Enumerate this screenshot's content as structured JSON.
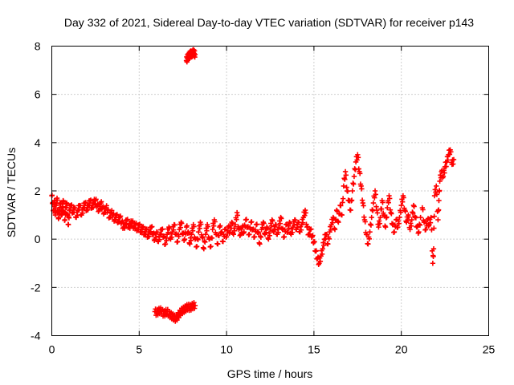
{
  "chart_data": {
    "type": "scatter",
    "title": "Day 332 of 2021, Sidereal Day-to-day VTEC variation (SDTVAR) for receiver p143",
    "xlabel": "GPS time / hours",
    "ylabel": "SDTVAR / TECUs",
    "xlim": [
      0,
      25
    ],
    "ylim": [
      -4,
      8
    ],
    "x_ticks": [
      0,
      5,
      10,
      15,
      20,
      25
    ],
    "y_ticks": [
      -4,
      -2,
      0,
      2,
      4,
      6,
      8
    ],
    "grid": true,
    "marker": "plus",
    "series": [
      {
        "name": "SDTVAR",
        "color": "#ff0000",
        "points": [
          [
            0.0,
            1.8
          ],
          [
            0.05,
            1.5
          ],
          [
            0.1,
            1.2
          ],
          [
            0.15,
            1.6
          ],
          [
            0.2,
            1.0
          ],
          [
            0.25,
            1.4
          ],
          [
            0.3,
            1.7
          ],
          [
            0.35,
            1.1
          ],
          [
            0.4,
            0.9
          ],
          [
            0.45,
            1.3
          ],
          [
            0.5,
            1.5
          ],
          [
            0.55,
            1.0
          ],
          [
            0.6,
            1.2
          ],
          [
            0.65,
            1.6
          ],
          [
            0.7,
            1.1
          ],
          [
            0.75,
            0.8
          ],
          [
            0.8,
            1.3
          ],
          [
            0.85,
            1.5
          ],
          [
            0.9,
            1.0
          ],
          [
            0.95,
            0.6
          ],
          [
            1.0,
            1.2
          ],
          [
            1.1,
            1.4
          ],
          [
            1.2,
            1.1
          ],
          [
            1.3,
            1.3
          ],
          [
            1.4,
            0.9
          ],
          [
            1.5,
            1.2
          ],
          [
            1.6,
            1.4
          ],
          [
            1.7,
            1.0
          ],
          [
            1.8,
            1.3
          ],
          [
            1.9,
            1.5
          ],
          [
            2.0,
            1.2
          ],
          [
            2.1,
            1.4
          ],
          [
            2.2,
            1.6
          ],
          [
            2.3,
            1.3
          ],
          [
            2.4,
            1.5
          ],
          [
            2.5,
            1.6
          ],
          [
            2.6,
            1.4
          ],
          [
            2.7,
            1.2
          ],
          [
            2.8,
            1.5
          ],
          [
            2.9,
            1.3
          ],
          [
            3.0,
            1.1
          ],
          [
            3.1,
            1.3
          ],
          [
            3.2,
            1.2
          ],
          [
            3.3,
            0.9
          ],
          [
            3.4,
            1.1
          ],
          [
            3.5,
            1.0
          ],
          [
            3.6,
            0.8
          ],
          [
            3.7,
            1.0
          ],
          [
            3.8,
            0.7
          ],
          [
            3.9,
            0.9
          ],
          [
            4.0,
            0.7
          ],
          [
            4.1,
            0.5
          ],
          [
            4.2,
            0.6
          ],
          [
            4.3,
            0.8
          ],
          [
            4.4,
            0.5
          ],
          [
            4.5,
            0.6
          ],
          [
            4.6,
            0.7
          ],
          [
            4.7,
            0.5
          ],
          [
            4.8,
            0.6
          ],
          [
            4.9,
            0.4
          ],
          [
            5.0,
            0.6
          ],
          [
            5.1,
            0.3
          ],
          [
            5.2,
            0.5
          ],
          [
            5.3,
            0.2
          ],
          [
            5.4,
            0.4
          ],
          [
            5.5,
            0.1
          ],
          [
            5.6,
            0.3
          ],
          [
            5.7,
            0.5
          ],
          [
            5.8,
            0.2
          ],
          [
            5.9,
            0.0
          ],
          [
            6.0,
            0.3
          ],
          [
            6.1,
            -0.1
          ],
          [
            6.2,
            0.2
          ],
          [
            6.3,
            0.4
          ],
          [
            6.4,
            0.1
          ],
          [
            6.5,
            -0.2
          ],
          [
            6.6,
            0.2
          ],
          [
            6.7,
            0.5
          ],
          [
            6.8,
            0.0
          ],
          [
            6.9,
            0.3
          ],
          [
            7.0,
            0.6
          ],
          [
            7.1,
            0.2
          ],
          [
            7.2,
            -0.1
          ],
          [
            7.3,
            0.4
          ],
          [
            7.4,
            0.7
          ],
          [
            7.5,
            0.2
          ],
          [
            7.6,
            0.0
          ],
          [
            7.7,
            0.5
          ],
          [
            7.8,
            0.3
          ],
          [
            7.9,
            -0.2
          ],
          [
            8.0,
            0.2
          ],
          [
            8.1,
            0.6
          ],
          [
            8.2,
            0.0
          ],
          [
            8.3,
            -0.3
          ],
          [
            8.4,
            0.3
          ],
          [
            8.5,
            0.7
          ],
          [
            8.6,
            0.1
          ],
          [
            8.7,
            -0.4
          ],
          [
            8.8,
            0.2
          ],
          [
            8.9,
            0.6
          ],
          [
            9.0,
            0.0
          ],
          [
            9.1,
            -0.3
          ],
          [
            9.2,
            0.4
          ],
          [
            9.3,
            0.8
          ],
          [
            9.4,
            0.2
          ],
          [
            9.5,
            -0.2
          ],
          [
            9.6,
            0.5
          ],
          [
            9.7,
            0.3
          ],
          [
            9.8,
            -0.1
          ],
          [
            9.9,
            0.4
          ],
          [
            10.0,
            0.1
          ],
          [
            10.1,
            0.5
          ],
          [
            10.2,
            0.3
          ],
          [
            10.3,
            0.7
          ],
          [
            10.4,
            0.2
          ],
          [
            10.5,
            0.6
          ],
          [
            10.6,
            1.1
          ],
          [
            10.7,
            0.4
          ],
          [
            10.8,
            0.2
          ],
          [
            10.9,
            0.5
          ],
          [
            11.0,
            0.3
          ],
          [
            11.1,
            0.8
          ],
          [
            11.2,
            0.5
          ],
          [
            11.3,
            0.2
          ],
          [
            11.4,
            0.7
          ],
          [
            11.5,
            0.4
          ],
          [
            11.6,
            0.1
          ],
          [
            11.7,
            0.6
          ],
          [
            11.8,
            0.3
          ],
          [
            11.9,
            -0.2
          ],
          [
            12.0,
            0.4
          ],
          [
            12.1,
            0.7
          ],
          [
            12.2,
            0.2
          ],
          [
            12.3,
            0.5
          ],
          [
            12.4,
            0.0
          ],
          [
            12.5,
            0.4
          ],
          [
            12.6,
            0.8
          ],
          [
            12.7,
            0.3
          ],
          [
            12.8,
            0.6
          ],
          [
            12.9,
            0.2
          ],
          [
            13.0,
            0.5
          ],
          [
            13.1,
            0.9
          ],
          [
            13.2,
            0.4
          ],
          [
            13.3,
            0.1
          ],
          [
            13.4,
            0.6
          ],
          [
            13.5,
            0.3
          ],
          [
            13.6,
            0.7
          ],
          [
            13.7,
            0.2
          ],
          [
            13.8,
            0.5
          ],
          [
            13.9,
            0.8
          ],
          [
            14.0,
            0.4
          ],
          [
            14.1,
            0.7
          ],
          [
            14.2,
            0.3
          ],
          [
            14.3,
            0.6
          ],
          [
            14.4,
            0.9
          ],
          [
            14.5,
            1.2
          ],
          [
            14.6,
            0.5
          ],
          [
            14.7,
            0.2
          ],
          [
            14.8,
            0.4
          ],
          [
            14.9,
            0.1
          ],
          [
            15.0,
            -0.1
          ],
          [
            15.1,
            -0.5
          ],
          [
            15.2,
            -0.8
          ],
          [
            15.3,
            -1.0
          ],
          [
            15.4,
            -0.7
          ],
          [
            15.5,
            -0.4
          ],
          [
            15.6,
            0.0
          ],
          [
            15.7,
            0.2
          ],
          [
            15.8,
            -0.2
          ],
          [
            15.9,
            0.3
          ],
          [
            16.0,
            0.6
          ],
          [
            16.1,
            0.9
          ],
          [
            16.2,
            0.4
          ],
          [
            16.3,
            1.2
          ],
          [
            16.4,
            0.7
          ],
          [
            16.5,
            1.4
          ],
          [
            16.6,
            1.0
          ],
          [
            16.7,
            2.2
          ],
          [
            16.8,
            2.8
          ],
          [
            16.9,
            2.0
          ],
          [
            17.0,
            1.6
          ],
          [
            17.1,
            1.2
          ],
          [
            17.2,
            2.0
          ],
          [
            17.3,
            2.6
          ],
          [
            17.4,
            3.2
          ],
          [
            17.5,
            3.5
          ],
          [
            17.6,
            2.8
          ],
          [
            17.7,
            2.2
          ],
          [
            17.8,
            1.5
          ],
          [
            17.9,
            0.8
          ],
          [
            18.0,
            0.2
          ],
          [
            18.1,
            -0.2
          ],
          [
            18.2,
            0.3
          ],
          [
            18.3,
            0.9
          ],
          [
            18.4,
            1.5
          ],
          [
            18.5,
            2.0
          ],
          [
            18.6,
            1.2
          ],
          [
            18.7,
            0.5
          ],
          [
            18.8,
            0.9
          ],
          [
            18.9,
            1.6
          ],
          [
            19.0,
            1.0
          ],
          [
            19.1,
            0.5
          ],
          [
            19.2,
            1.3
          ],
          [
            19.3,
            1.8
          ],
          [
            19.4,
            1.1
          ],
          [
            19.5,
            0.6
          ],
          [
            19.6,
            0.3
          ],
          [
            19.7,
            0.8
          ],
          [
            19.8,
            0.5
          ],
          [
            19.9,
            0.9
          ],
          [
            20.0,
            1.4
          ],
          [
            20.1,
            1.8
          ],
          [
            20.2,
            1.2
          ],
          [
            20.3,
            0.7
          ],
          [
            20.4,
            1.0
          ],
          [
            20.5,
            0.4
          ],
          [
            20.6,
            0.8
          ],
          [
            20.7,
            1.4
          ],
          [
            20.8,
            0.9
          ],
          [
            20.9,
            0.5
          ],
          [
            21.0,
            0.3
          ],
          [
            21.1,
            0.9
          ],
          [
            21.2,
            1.3
          ],
          [
            21.3,
            0.7
          ],
          [
            21.4,
            0.4
          ],
          [
            21.5,
            0.8
          ],
          [
            21.6,
            0.6
          ],
          [
            21.7,
            0.9
          ],
          [
            21.8,
            -1.0
          ],
          [
            21.85,
            -0.4
          ],
          [
            21.9,
            1.8
          ],
          [
            22.0,
            2.2
          ],
          [
            22.1,
            0.8
          ],
          [
            22.15,
            1.6
          ],
          [
            22.2,
            2.4
          ],
          [
            22.3,
            2.8
          ],
          [
            22.4,
            2.6
          ],
          [
            22.5,
            3.0
          ],
          [
            22.6,
            3.2
          ],
          [
            22.7,
            3.5
          ],
          [
            22.8,
            3.7
          ],
          [
            22.9,
            3.1
          ],
          [
            23.0,
            3.3
          ],
          [
            7.7,
            7.4
          ],
          [
            7.75,
            7.5
          ],
          [
            7.8,
            7.55
          ],
          [
            7.85,
            7.6
          ],
          [
            7.9,
            7.65
          ],
          [
            7.95,
            7.7
          ],
          [
            8.0,
            7.65
          ],
          [
            8.05,
            7.7
          ],
          [
            8.1,
            7.75
          ],
          [
            8.15,
            7.7
          ],
          [
            8.2,
            7.65
          ],
          [
            5.9,
            -3.0
          ],
          [
            6.0,
            -3.05
          ],
          [
            6.1,
            -3.0
          ],
          [
            6.2,
            -2.95
          ],
          [
            6.3,
            -3.0
          ],
          [
            6.4,
            -3.1
          ],
          [
            6.5,
            -3.05
          ],
          [
            6.6,
            -3.0
          ],
          [
            6.7,
            -3.1
          ],
          [
            6.8,
            -3.15
          ],
          [
            6.9,
            -3.2
          ],
          [
            7.0,
            -3.25
          ],
          [
            7.1,
            -3.3
          ],
          [
            7.2,
            -3.2
          ],
          [
            7.3,
            -3.1
          ],
          [
            7.4,
            -3.0
          ],
          [
            7.5,
            -2.95
          ],
          [
            7.6,
            -2.9
          ],
          [
            7.7,
            -2.85
          ],
          [
            7.8,
            -2.8
          ],
          [
            7.9,
            -2.85
          ],
          [
            8.0,
            -2.8
          ],
          [
            8.1,
            -2.75
          ],
          [
            8.2,
            -2.75
          ]
        ]
      }
    ]
  }
}
